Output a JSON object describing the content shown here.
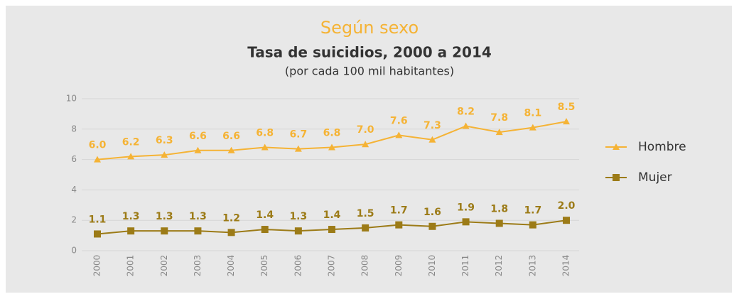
{
  "chart_data": {
    "type": "line",
    "title": "Según sexo",
    "subtitle": "Tasa de suicidios, 2000 a 2014",
    "unit_note": "(por cada 100 mil habitantes)",
    "categories": [
      "2000",
      "2001",
      "2002",
      "2003",
      "2004",
      "2005",
      "2006",
      "2007",
      "2008",
      "2009",
      "2010",
      "2011",
      "2012",
      "2013",
      "2014"
    ],
    "series": [
      {
        "name": "Hombre",
        "color": "#f5b335",
        "marker": "triangle",
        "values": [
          6.0,
          6.2,
          6.3,
          6.6,
          6.6,
          6.8,
          6.7,
          6.8,
          7.0,
          7.6,
          7.3,
          8.2,
          7.8,
          8.1,
          8.5
        ],
        "value_labels": [
          "6.0",
          "6.2",
          "6.3",
          "6.6",
          "6.6",
          "6.8",
          "6.7",
          "6.8",
          "7.0",
          "7.6",
          "7.3",
          "8.2",
          "7.8",
          "8.1",
          "8.5"
        ]
      },
      {
        "name": "Mujer",
        "color": "#9c7b17",
        "marker": "square",
        "values": [
          1.1,
          1.3,
          1.3,
          1.3,
          1.2,
          1.4,
          1.3,
          1.4,
          1.5,
          1.7,
          1.6,
          1.9,
          1.8,
          1.7,
          2.0
        ],
        "value_labels": [
          "1.1",
          "1.3",
          "1.3",
          "1.3",
          "1.2",
          "1.4",
          "1.3",
          "1.4",
          "1.5",
          "1.7",
          "1.6",
          "1.9",
          "1.8",
          "1.7",
          "2.0"
        ]
      }
    ],
    "ylim": [
      0,
      10
    ],
    "yticks": [
      0,
      2,
      4,
      6,
      8,
      10
    ],
    "grid": true,
    "legend": "right"
  }
}
